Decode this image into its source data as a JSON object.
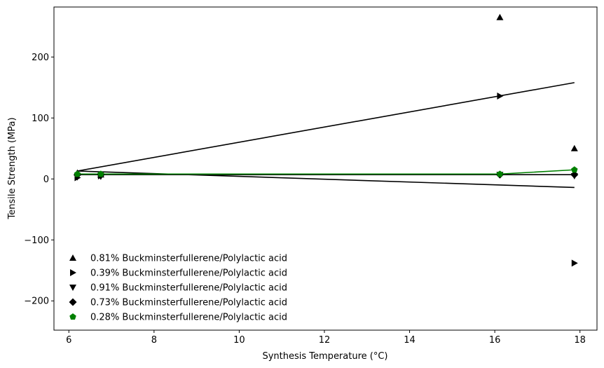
{
  "chart_data": {
    "type": "scatter",
    "xlabel": "Synthesis Temperature (°C)",
    "ylabel": "Tensile Strength (MPa)",
    "xlim": [
      5.65,
      18.4
    ],
    "ylim": [
      -248,
      282
    ],
    "xticks": [
      6,
      8,
      10,
      12,
      14,
      16,
      18
    ],
    "yticks": [
      -200,
      -100,
      0,
      100,
      200
    ],
    "xtick_labels": [
      "6",
      "8",
      "10",
      "12",
      "14",
      "16",
      "18"
    ],
    "ytick_labels": [
      "−200",
      "−100",
      "0",
      "100",
      "200"
    ],
    "grid": false,
    "legend_position": "lower-left",
    "series": [
      {
        "name": "0.81% Buckminsterfullerene/Polylactic acid",
        "marker": "triangle-up",
        "color": "#000000",
        "points": [
          [
            6.2,
            10
          ],
          [
            6.75,
            7
          ],
          [
            16.12,
            265
          ],
          [
            17.87,
            50
          ]
        ],
        "fit": null
      },
      {
        "name": "0.39% Buckminsterfullerene/Polylactic acid",
        "marker": "triangle-right",
        "color": "#000000",
        "points": [
          [
            6.2,
            2
          ],
          [
            6.75,
            5
          ],
          [
            16.12,
            136
          ],
          [
            17.87,
            -138
          ]
        ],
        "fit": [
          [
            6.2,
            13
          ],
          [
            17.87,
            158
          ]
        ]
      },
      {
        "name": "0.91% Buckminsterfullerene/Polylactic acid",
        "marker": "triangle-down",
        "color": "#000000",
        "points": [
          [
            6.2,
            3
          ],
          [
            6.75,
            4
          ],
          [
            16.12,
            7
          ],
          [
            17.87,
            5
          ]
        ],
        "fit": [
          [
            6.2,
            13
          ],
          [
            17.87,
            -14
          ]
        ]
      },
      {
        "name": "0.73% Buckminsterfullerene/Polylactic acid",
        "marker": "diamond",
        "color": "#000000",
        "points": [
          [
            6.2,
            7
          ],
          [
            6.75,
            7
          ],
          [
            16.12,
            7
          ],
          [
            17.87,
            7
          ]
        ],
        "fit": [
          [
            6.2,
            7
          ],
          [
            17.87,
            7
          ]
        ]
      },
      {
        "name": "0.28% Buckminsterfullerene/Polylactic acid",
        "marker": "pentagon",
        "color": "#008000",
        "points": [
          [
            6.2,
            8
          ],
          [
            6.75,
            8
          ],
          [
            16.12,
            8
          ],
          [
            17.87,
            15
          ]
        ],
        "fit": null,
        "line": [
          [
            6.2,
            8
          ],
          [
            6.75,
            8
          ],
          [
            16.12,
            8
          ],
          [
            17.87,
            15
          ]
        ]
      }
    ]
  }
}
